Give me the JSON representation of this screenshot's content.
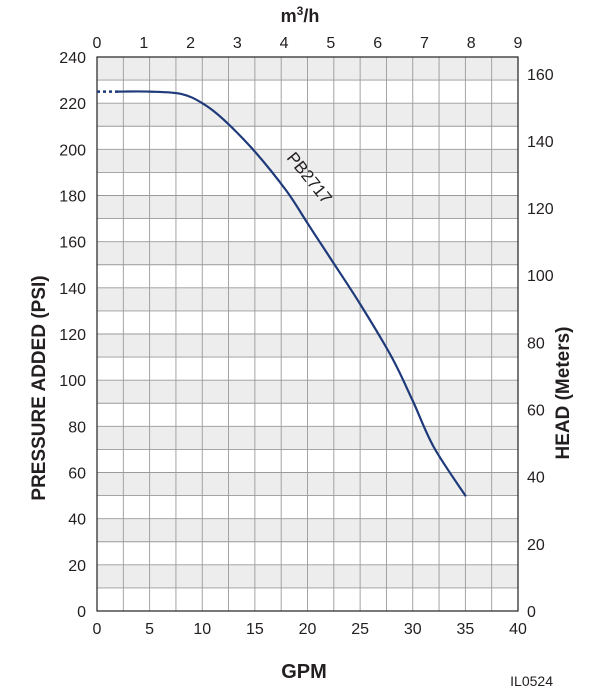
{
  "chart_data": {
    "type": "line",
    "figure_id": "IL0524",
    "xlabel": "GPM",
    "ylabel": "PRESSURE ADDED (PSI)",
    "top_xlabel": "m3/h",
    "top_xlabel_base": "m",
    "top_xlabel_sup": "3",
    "top_xlabel_tail": "/h",
    "right_ylabel": "HEAD (Meters)",
    "xlim": [
      0,
      40
    ],
    "ylim": [
      0,
      240
    ],
    "top_xlim": [
      0,
      9
    ],
    "right_ylim": [
      0,
      165
    ],
    "x_ticks": [
      0,
      5,
      10,
      15,
      20,
      25,
      30,
      35,
      40
    ],
    "y_ticks": [
      0,
      20,
      40,
      60,
      80,
      100,
      120,
      140,
      160,
      180,
      200,
      220,
      240
    ],
    "top_x_ticks": [
      0,
      1,
      2,
      3,
      4,
      5,
      6,
      7,
      8,
      9
    ],
    "right_y_ticks": [
      0,
      20,
      40,
      60,
      80,
      100,
      120,
      140,
      160
    ],
    "grid": true,
    "series": [
      {
        "name": "PB2717",
        "color": "#1f3a7a",
        "dotted_segment": {
          "x": [
            0,
            2
          ],
          "y": [
            225,
            225
          ]
        },
        "x": [
          2,
          5,
          8,
          10,
          12,
          15,
          18,
          20,
          22,
          25,
          28,
          30,
          32,
          35
        ],
        "y": [
          225,
          225,
          224,
          220,
          213,
          199,
          182,
          168,
          154,
          133,
          110,
          91,
          71,
          50
        ]
      }
    ]
  }
}
